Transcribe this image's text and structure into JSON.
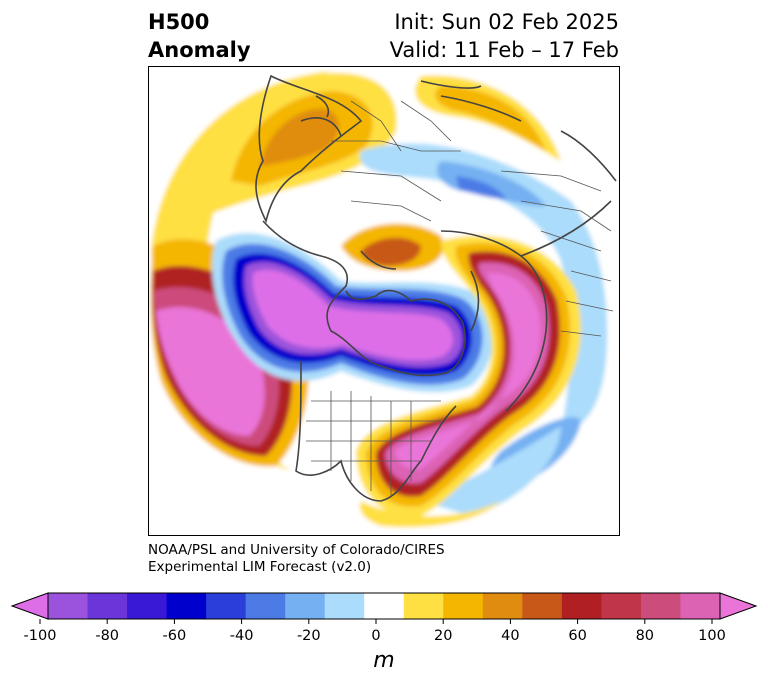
{
  "header": {
    "title_line1": "H500",
    "title_line2": "Anomaly",
    "init": "Init: Sun 02 Feb 2025",
    "valid": "Valid: 11 Feb – 17 Feb"
  },
  "credit": {
    "line1": "NOAA/PSL and University of Colorado/CIRES",
    "line2": "Experimental LIM Forecast (v2.0)"
  },
  "colorbar": {
    "unit": "m",
    "tick_labels": [
      "-100",
      "-80",
      "-60",
      "-40",
      "-20",
      "0",
      "20",
      "40",
      "60",
      "80",
      "100"
    ],
    "colors": [
      "#dd6ee8",
      "#9b52dc",
      "#6a35d9",
      "#3a19d6",
      "#0000cc",
      "#2a3fd9",
      "#4c7be6",
      "#74b0f2",
      "#abdcfb",
      "#ffffff",
      "#ffe043",
      "#f4b600",
      "#e08c10",
      "#c85818",
      "#b02022",
      "#c03648",
      "#cc4c7c",
      "#dc62b4",
      "#ea74d8"
    ]
  }
}
